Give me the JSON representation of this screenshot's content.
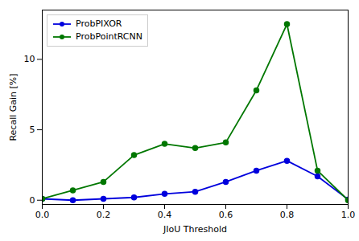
{
  "chart_data": {
    "type": "line",
    "x": [
      0.0,
      0.1,
      0.2,
      0.3,
      0.4,
      0.5,
      0.6,
      0.7,
      0.8,
      0.9,
      1.0
    ],
    "series": [
      {
        "name": "ProbPIXOR",
        "color": "#0000dd",
        "marker": "circle",
        "values": [
          0.1,
          0.0,
          0.1,
          0.2,
          0.45,
          0.6,
          1.3,
          2.1,
          2.8,
          1.7,
          0.05
        ]
      },
      {
        "name": "ProbPointRCNN",
        "color": "#007700",
        "marker": "circle",
        "values": [
          0.1,
          0.7,
          1.3,
          3.2,
          4.0,
          3.7,
          4.1,
          7.8,
          12.5,
          2.1,
          0.0
        ]
      }
    ],
    "xlabel": "JIoU Threshold",
    "ylabel": "Recall Gain [%]",
    "xlim": [
      0.0,
      1.0
    ],
    "ylim": [
      -0.3,
      13.5
    ],
    "xticks": [
      {
        "value": 0.0,
        "label": "0.0"
      },
      0.2,
      0.4,
      0.6,
      0.8,
      {
        "value": 1.0,
        "label": "1.0"
      }
    ],
    "yticks": [
      0,
      5,
      10
    ],
    "legend": "upper left",
    "grid": false
  }
}
